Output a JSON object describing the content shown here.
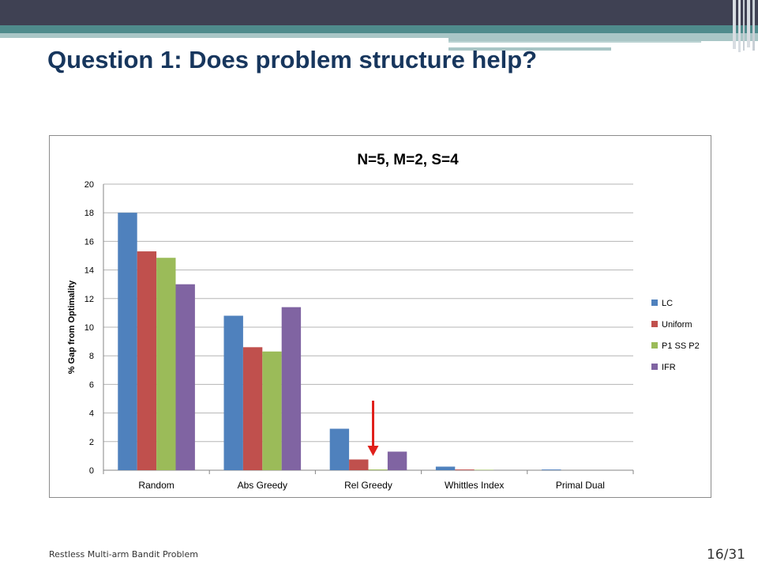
{
  "slide": {
    "title": "Question 1: Does problem structure help?",
    "footer": "Restless Multi-arm Bandit Problem",
    "page_number": "16/31"
  },
  "colors": {
    "title": "#17365d",
    "header_dark": "#3f4153",
    "header_teal": "#4f8b8c",
    "annotation_arrow": "#e0201b"
  },
  "chart_data": {
    "type": "bar",
    "title": "N=5, M=2, S=4",
    "xlabel": "",
    "ylabel": "% Gap from Optimality",
    "ylim": [
      0,
      20
    ],
    "yticks": [
      0,
      2,
      4,
      6,
      8,
      10,
      12,
      14,
      16,
      18,
      20
    ],
    "grid": true,
    "legend_position": "right",
    "categories": [
      "Random",
      "Abs Greedy",
      "Rel Greedy",
      "Whittles Index",
      "Primal Dual"
    ],
    "series": [
      {
        "name": "LC",
        "color": "#4f81bd",
        "values": [
          18.0,
          10.8,
          2.9,
          0.25,
          0.05
        ]
      },
      {
        "name": "Uniform",
        "color": "#c0504d",
        "values": [
          15.3,
          8.6,
          0.75,
          0.05,
          0.0
        ]
      },
      {
        "name": "P1 SS P2",
        "color": "#9bbb59",
        "values": [
          14.85,
          8.3,
          0.05,
          0.03,
          0.0
        ]
      },
      {
        "name": "IFR",
        "color": "#8064a2",
        "values": [
          13.0,
          11.4,
          1.3,
          0.0,
          0.0
        ]
      }
    ],
    "annotation": {
      "type": "arrow",
      "points_to": "Rel Greedy",
      "color": "#e0201b"
    }
  }
}
